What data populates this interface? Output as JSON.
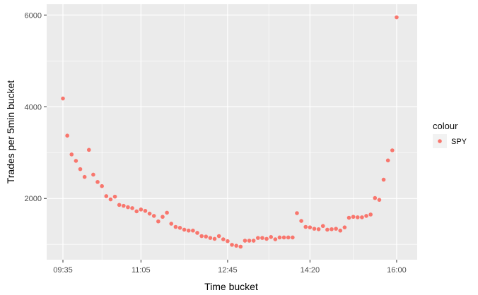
{
  "chart_data": {
    "type": "scatter",
    "title": "",
    "xlabel": "Time bucket",
    "ylabel": "Trades per 5min bucket",
    "x_unit": "time of day",
    "x": [
      "09:35",
      "09:40",
      "09:45",
      "09:50",
      "09:55",
      "10:00",
      "10:05",
      "10:10",
      "10:15",
      "10:20",
      "10:25",
      "10:30",
      "10:35",
      "10:40",
      "10:45",
      "10:50",
      "10:55",
      "11:00",
      "11:05",
      "11:10",
      "11:15",
      "11:20",
      "11:25",
      "11:30",
      "11:35",
      "11:40",
      "11:45",
      "11:50",
      "11:55",
      "12:00",
      "12:05",
      "12:10",
      "12:15",
      "12:20",
      "12:25",
      "12:30",
      "12:35",
      "12:40",
      "12:45",
      "12:50",
      "12:55",
      "13:00",
      "13:05",
      "13:10",
      "13:15",
      "13:20",
      "13:25",
      "13:30",
      "13:35",
      "13:40",
      "13:45",
      "13:50",
      "13:55",
      "14:00",
      "14:05",
      "14:10",
      "14:15",
      "14:20",
      "14:25",
      "14:30",
      "14:35",
      "14:40",
      "14:45",
      "14:50",
      "14:55",
      "15:00",
      "15:05",
      "15:10",
      "15:15",
      "15:20",
      "15:25",
      "15:30",
      "15:35",
      "15:40",
      "15:45",
      "15:50",
      "15:55",
      "16:00"
    ],
    "series": [
      {
        "name": "SPY",
        "color": "#F8766D",
        "values": [
          4180,
          3370,
          2960,
          2820,
          2640,
          2470,
          3060,
          2520,
          2360,
          2270,
          2050,
          1980,
          2040,
          1860,
          1840,
          1810,
          1790,
          1720,
          1760,
          1730,
          1670,
          1620,
          1500,
          1600,
          1690,
          1450,
          1380,
          1360,
          1320,
          1300,
          1300,
          1250,
          1180,
          1170,
          1140,
          1120,
          1180,
          1110,
          1070,
          990,
          970,
          950,
          1080,
          1080,
          1080,
          1140,
          1140,
          1120,
          1160,
          1110,
          1150,
          1150,
          1150,
          1150,
          1680,
          1510,
          1380,
          1370,
          1340,
          1330,
          1400,
          1320,
          1330,
          1340,
          1300,
          1370,
          1580,
          1600,
          1590,
          1590,
          1620,
          1650,
          2010,
          1970,
          2410,
          2830,
          3050,
          5950
        ]
      }
    ],
    "x_ticks": [
      "09:35",
      "11:05",
      "12:45",
      "14:20",
      "16:00"
    ],
    "y_ticks": [
      2000,
      4000,
      6000
    ],
    "ylim": [
      665,
      6235
    ],
    "grid": true,
    "legend": {
      "title": "colour",
      "position": "right",
      "entries": [
        "SPY"
      ]
    }
  }
}
